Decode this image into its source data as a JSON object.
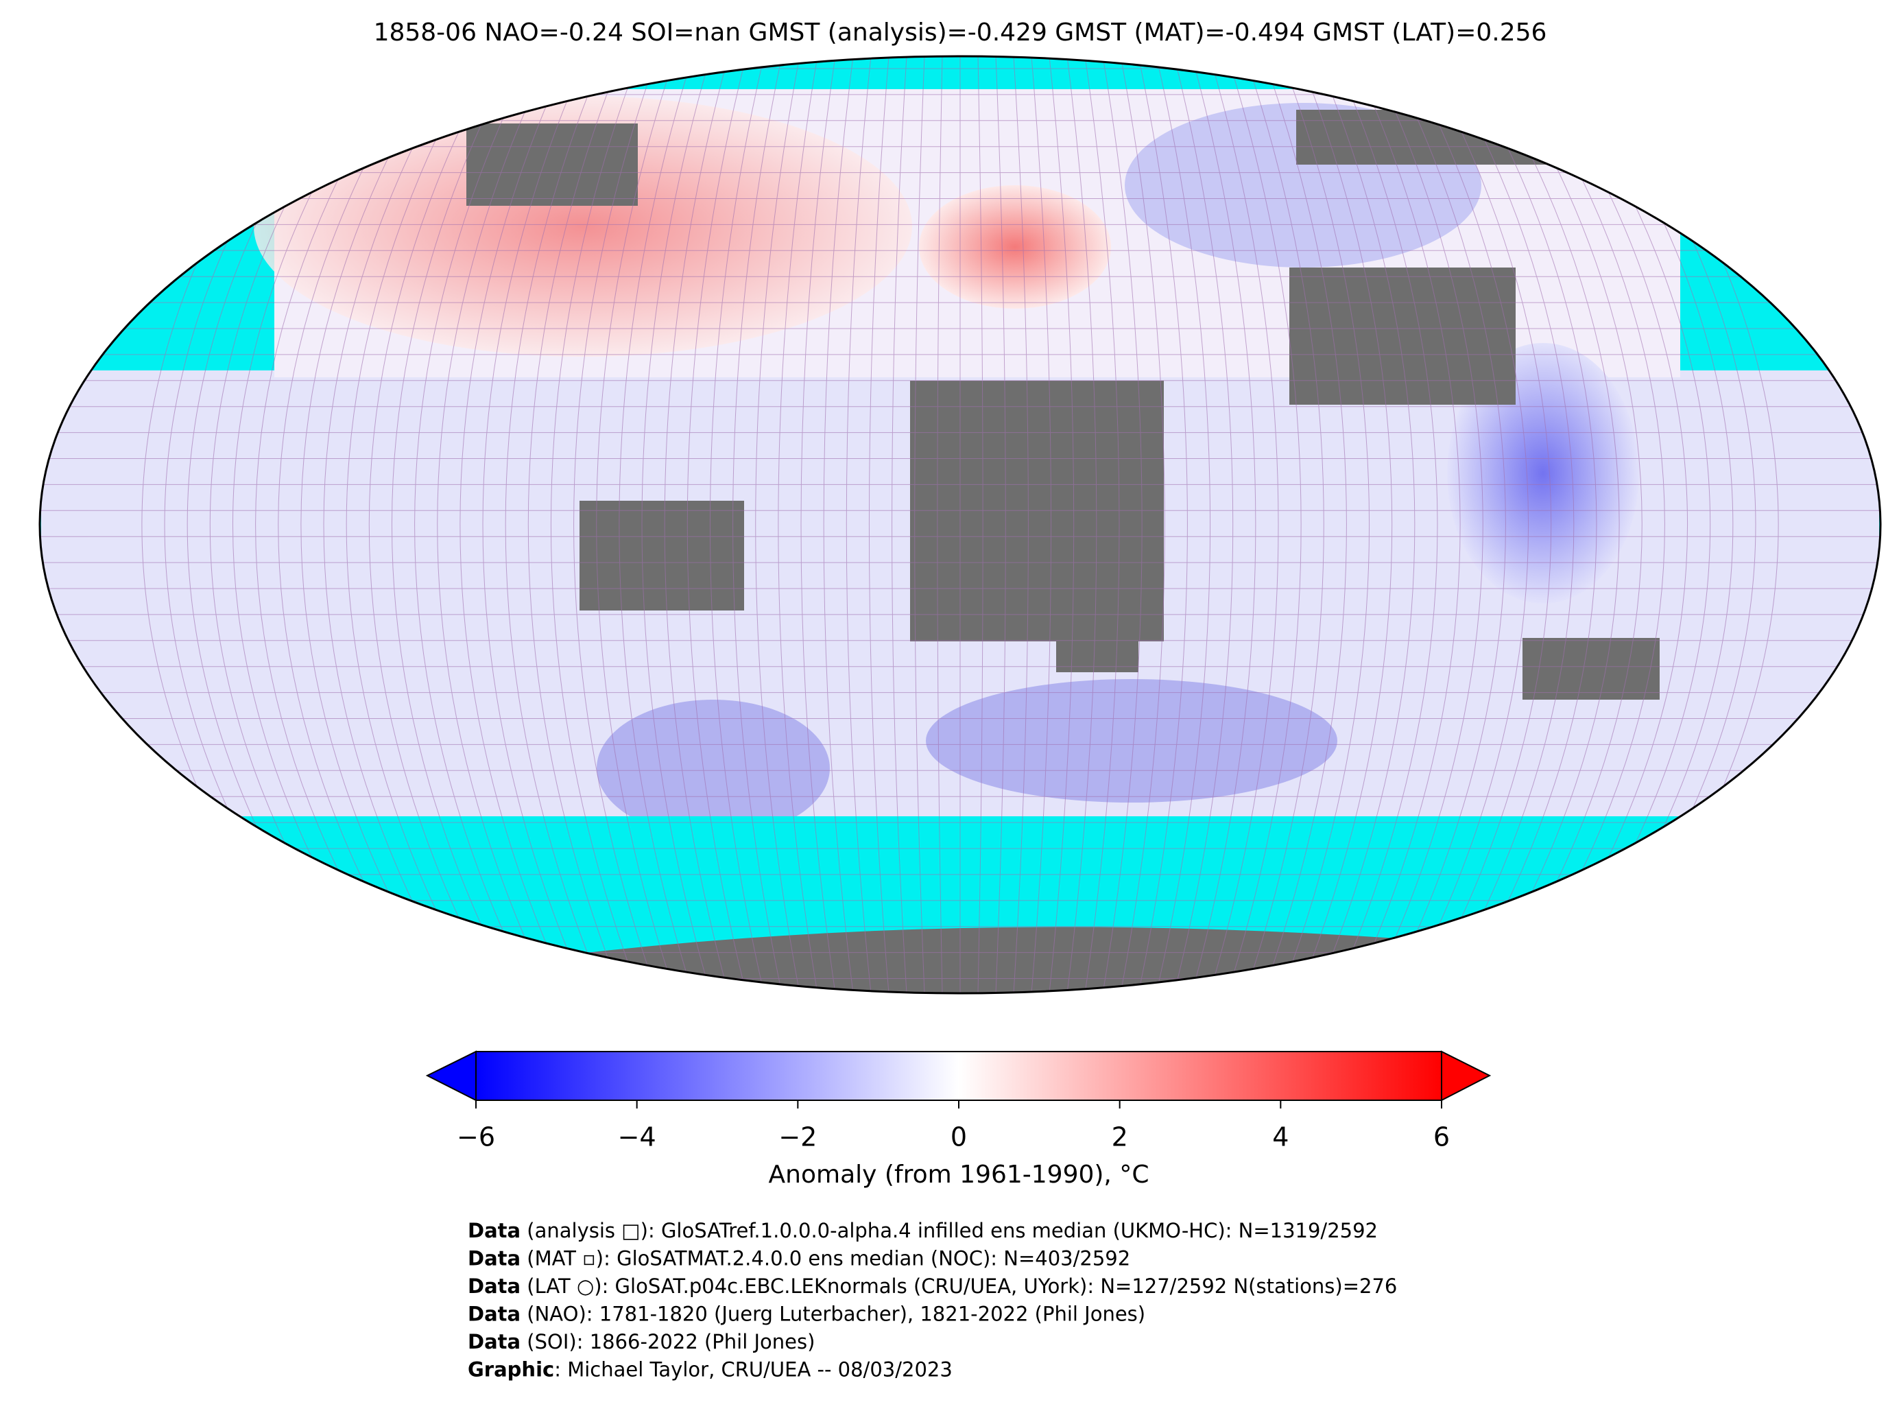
{
  "title": "1858-06 NAO=-0.24 SOI=nan GMST (analysis)=-0.429 GMST (MAT)=-0.494 GMST (LAT)=0.256",
  "colorbar": {
    "label": "Anomaly (from 1961-1990), °C",
    "lim": [
      -6,
      6
    ],
    "ticks": [
      {
        "value": -6,
        "label": "−6"
      },
      {
        "value": -4,
        "label": "−4"
      },
      {
        "value": -2,
        "label": "−2"
      },
      0,
      2,
      4,
      6
    ],
    "colors": [
      "#0000ff",
      "#ffffff",
      "#ff0000"
    ]
  },
  "footer": [
    {
      "label": "Data",
      "text": " (analysis □): GloSATref.1.0.0.0-alpha.4 infilled ens median (UKMO-HC): N=1319/2592"
    },
    {
      "label": "Data",
      "text": " (MAT ▫): GloSATMAT.2.4.0.0 ens median (NOC): N=403/2592"
    },
    {
      "label": "Data",
      "text": " (LAT ○): GloSAT.p04c.EBC.LEKnormals (CRU/UEA, UYork): N=127/2592 N(stations)=276"
    },
    {
      "label": "Data",
      "text": " (NAO): 1781-1820 (Juerg Luterbacher), 1821-2022 (Phil Jones)"
    },
    {
      "label": "Data",
      "text": " (SOI): 1866-2022 (Phil Jones)"
    },
    {
      "label": "Graphic",
      "text": ": Michael Taylor, CRU/UEA -- 08/03/2023"
    }
  ]
}
